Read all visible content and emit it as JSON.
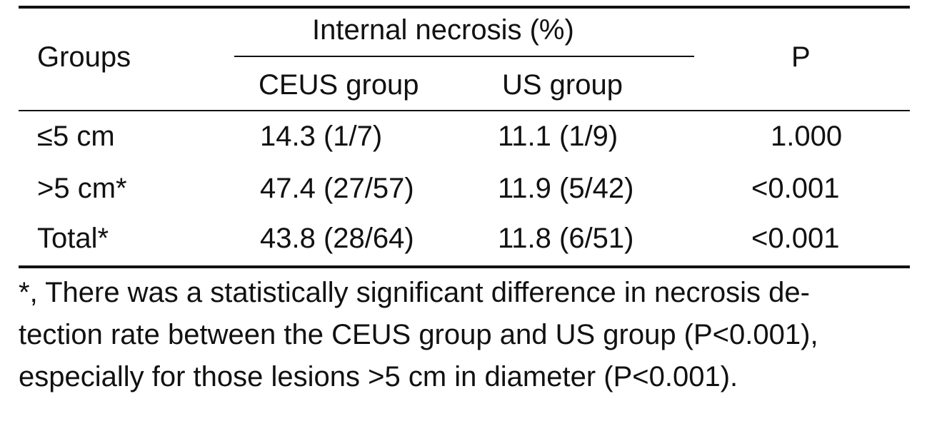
{
  "table": {
    "header": {
      "groups": "Groups",
      "span": "Internal necrosis (%)",
      "col1": "CEUS group",
      "col2": "US group",
      "p": "P"
    },
    "rows": [
      {
        "group": "≤5 cm",
        "ceus": "14.3 (1/7)",
        "us": "11.1 (1/9)",
        "p": "1.000"
      },
      {
        "group": ">5 cm*",
        "ceus": "47.4 (27/57)",
        "us": "11.9 (5/42)",
        "p": "<0.001"
      },
      {
        "group": "Total*",
        "ceus": "43.8 (28/64)",
        "us": "11.8 (6/51)",
        "p": "<0.001"
      }
    ]
  },
  "footnote": {
    "line1": "*, There was a statistically significant difference in necrosis de-",
    "line2": "tection rate between the CEUS group and US group (P<0.001),",
    "line3": "especially for those lesions >5 cm in diameter (P<0.001)."
  }
}
